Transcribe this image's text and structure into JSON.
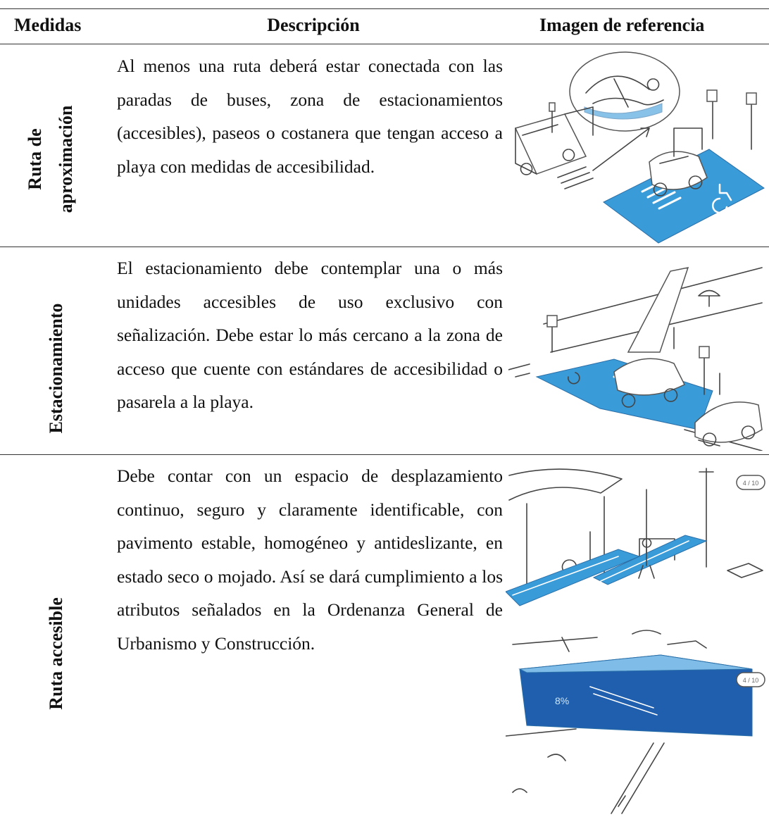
{
  "table": {
    "headers": [
      "Medidas",
      "Descripción",
      "Imagen de referencia"
    ],
    "rows": [
      {
        "measure": [
          "Ruta de",
          "aproximación"
        ],
        "description": "Al menos una ruta deberá estar conectada con las paradas de buses, zona de estacionamientos (accesibles), paseos o costanera que tengan acceso a playa con medidas de accesibilidad."
      },
      {
        "measure": [
          "Estacionamiento"
        ],
        "description": "El estacionamiento debe contemplar una o más unidades accesibles de uso exclusivo con señalización. Debe estar lo más cercano a la zona de acceso que cuente con estándares de accesibilidad o pasarela a la playa."
      },
      {
        "measure": [
          "Ruta accesible"
        ],
        "description": "Debe contar con un espacio de desplazamiento continuo, seguro y claramente identificable, con pavimento estable, homogéneo y antideslizante, en estado seco o mojado. Así se dará cumplimiento a los atributos señalados en la Ordenanza General de Urbanismo y Construcción.",
        "image_texts": [
          "4 / 10",
          "8%",
          "4 / 10"
        ]
      }
    ]
  }
}
